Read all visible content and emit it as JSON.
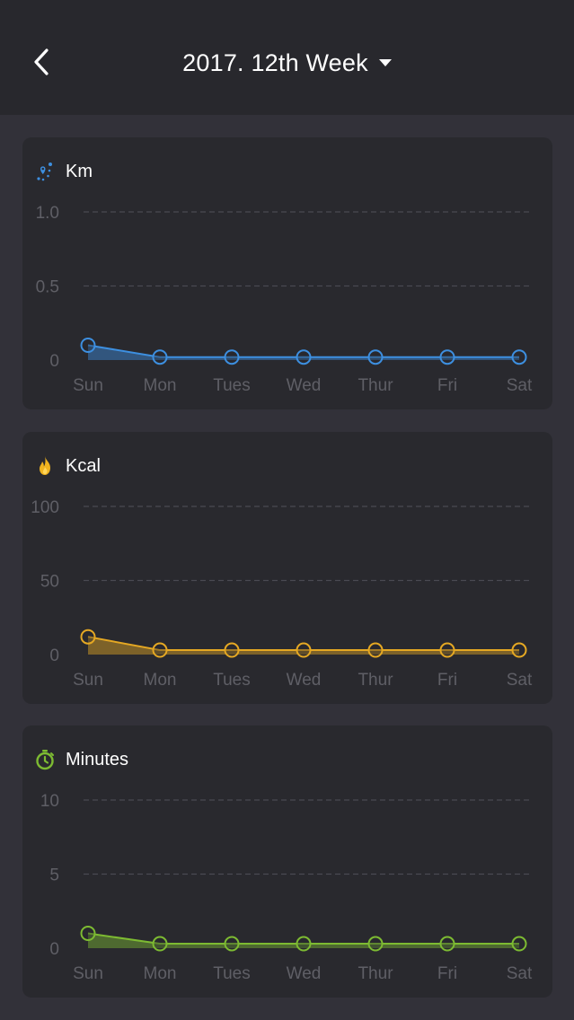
{
  "header": {
    "back_icon": "chevron-left-icon",
    "week_label": "2017. 12th Week",
    "dropdown_icon": "caret-down-icon"
  },
  "cards": [
    {
      "key": "km",
      "title": "Km",
      "icon": "route-pin-icon",
      "color": "#3d8fe0",
      "chart_data": {
        "type": "area",
        "categories": [
          "Sun",
          "Mon",
          "Tues",
          "Wed",
          "Thur",
          "Fri",
          "Sat"
        ],
        "y_ticks": [
          "1.0",
          "0.5",
          "0"
        ],
        "ylim": [
          0,
          1.0
        ],
        "series": [
          {
            "values": [
              0.1,
              0.02,
              0.02,
              0.02,
              0.02,
              0.02,
              0.02
            ]
          }
        ],
        "grid": true
      }
    },
    {
      "key": "kcal",
      "title": "Kcal",
      "icon": "flame-icon",
      "color": "#e5a823",
      "chart_data": {
        "type": "area",
        "categories": [
          "Sun",
          "Mon",
          "Tues",
          "Wed",
          "Thur",
          "Fri",
          "Sat"
        ],
        "y_ticks": [
          "100",
          "50",
          "0"
        ],
        "ylim": [
          0,
          100
        ],
        "series": [
          {
            "values": [
              12,
              3,
              3,
              3,
              3,
              3,
              3
            ]
          }
        ],
        "grid": true
      }
    },
    {
      "key": "minutes",
      "title": "Minutes",
      "icon": "stopwatch-icon",
      "color": "#7dbb32",
      "chart_data": {
        "type": "area",
        "categories": [
          "Sun",
          "Mon",
          "Tues",
          "Wed",
          "Thur",
          "Fri",
          "Sat"
        ],
        "y_ticks": [
          "10",
          "5",
          "0"
        ],
        "ylim": [
          0,
          10
        ],
        "series": [
          {
            "values": [
              1,
              0.3,
              0.3,
              0.3,
              0.3,
              0.3,
              0.3
            ]
          }
        ],
        "grid": true
      }
    }
  ]
}
